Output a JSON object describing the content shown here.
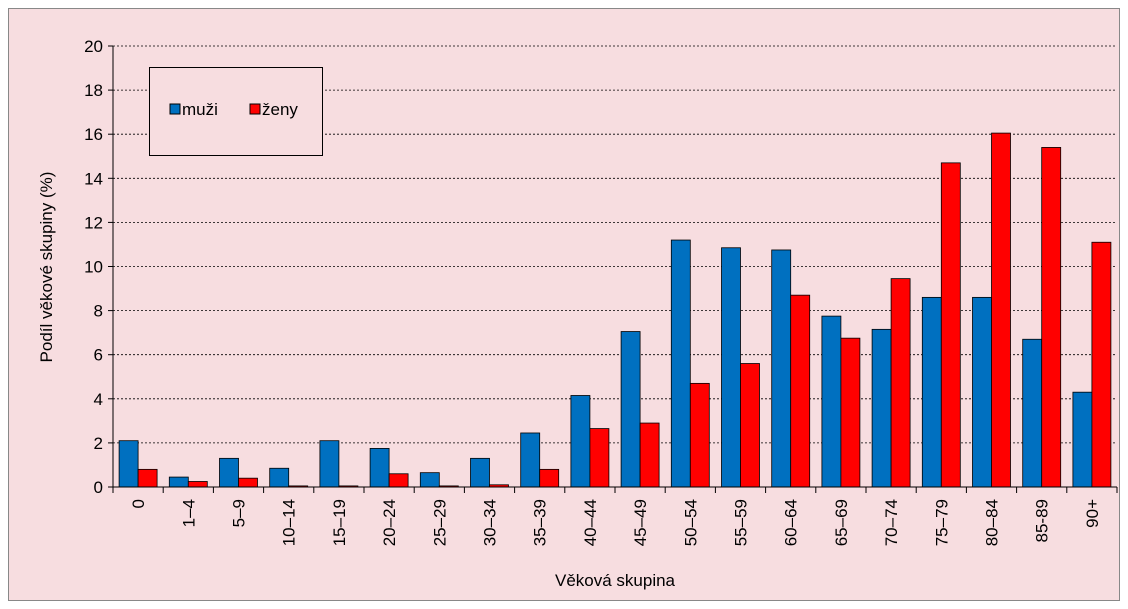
{
  "chart_data": {
    "type": "bar",
    "x_label": "Věková skupina",
    "y_label": "Podíl věkové skupiny (%)",
    "categories": [
      "0",
      "1–4",
      "5–9",
      "10–14",
      "15–19",
      "20–24",
      "25–29",
      "30–34",
      "35–39",
      "40–44",
      "45–49",
      "50–54",
      "55–59",
      "60–64",
      "65–69",
      "70–74",
      "75–79",
      "80–84",
      "85-89",
      "90+"
    ],
    "series": [
      {
        "name": "muži",
        "color": "#0070c0",
        "values": [
          2.1,
          0.45,
          1.3,
          0.85,
          2.1,
          1.75,
          0.65,
          1.3,
          2.45,
          4.15,
          7.05,
          11.2,
          10.85,
          10.75,
          7.75,
          7.15,
          8.6,
          8.6,
          6.7,
          4.3
        ]
      },
      {
        "name": "ženy",
        "color": "#ff0000",
        "values": [
          0.8,
          0.25,
          0.4,
          0.05,
          0.05,
          0.6,
          0.05,
          0.1,
          0.8,
          2.65,
          2.9,
          4.7,
          5.6,
          8.7,
          6.75,
          9.45,
          14.7,
          16.05,
          15.4,
          11.1
        ]
      }
    ],
    "ylim": [
      0,
      20
    ],
    "yticks": [
      0,
      2,
      4,
      6,
      8,
      10,
      12,
      14,
      16,
      18,
      20
    ],
    "grid": true,
    "legend": "top-left"
  }
}
